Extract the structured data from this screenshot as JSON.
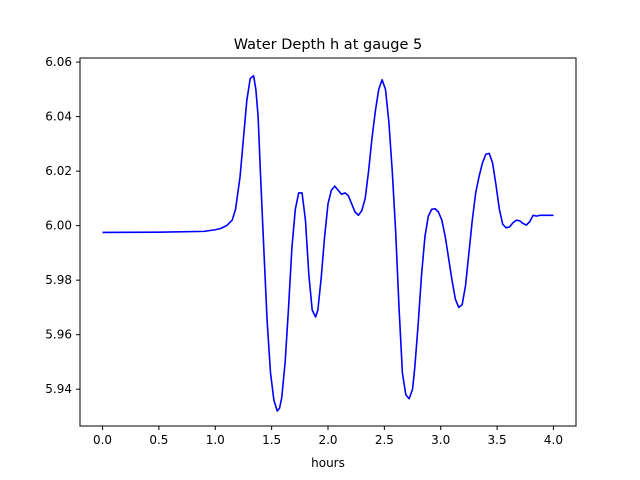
{
  "chart_data": {
    "type": "line",
    "title": "Water Depth h at gauge 5",
    "xlabel": "hours",
    "ylabel": "",
    "xlim": [
      -0.2,
      4.2
    ],
    "ylim": [
      5.9265,
      6.0615
    ],
    "xticks": [
      0.0,
      0.5,
      1.0,
      1.5,
      2.0,
      2.5,
      3.0,
      3.5,
      4.0
    ],
    "xtick_labels": [
      "0.0",
      "0.5",
      "1.0",
      "1.5",
      "2.0",
      "2.5",
      "3.0",
      "3.5",
      "4.0"
    ],
    "yticks": [
      5.94,
      5.96,
      5.98,
      6.0,
      6.02,
      6.04,
      6.06
    ],
    "ytick_labels": [
      "5.94",
      "5.96",
      "5.98",
      "6.00",
      "6.02",
      "6.04",
      "6.06"
    ],
    "grid": false,
    "legend": "none",
    "series": [
      {
        "color": "#0000ff",
        "x": [
          0.0,
          0.5,
          0.9,
          1.0,
          1.05,
          1.1,
          1.15,
          1.18,
          1.22,
          1.25,
          1.28,
          1.31,
          1.34,
          1.36,
          1.38,
          1.4,
          1.43,
          1.46,
          1.49,
          1.52,
          1.55,
          1.57,
          1.59,
          1.62,
          1.65,
          1.68,
          1.71,
          1.74,
          1.77,
          1.8,
          1.83,
          1.86,
          1.89,
          1.91,
          1.94,
          1.97,
          2.0,
          2.03,
          2.06,
          2.09,
          2.12,
          2.15,
          2.18,
          2.21,
          2.24,
          2.27,
          2.3,
          2.33,
          2.36,
          2.39,
          2.42,
          2.45,
          2.48,
          2.51,
          2.54,
          2.57,
          2.6,
          2.63,
          2.66,
          2.69,
          2.72,
          2.75,
          2.77,
          2.8,
          2.83,
          2.86,
          2.89,
          2.92,
          2.95,
          2.98,
          3.01,
          3.04,
          3.07,
          3.1,
          3.13,
          3.16,
          3.19,
          3.22,
          3.25,
          3.28,
          3.31,
          3.34,
          3.37,
          3.4,
          3.43,
          3.46,
          3.49,
          3.52,
          3.55,
          3.58,
          3.61,
          3.64,
          3.67,
          3.7,
          3.73,
          3.76,
          3.79,
          3.82,
          3.85,
          3.88,
          3.91,
          3.94,
          3.97,
          4.0
        ],
        "y": [
          5.9975,
          5.9976,
          5.9979,
          5.9985,
          5.999,
          6.0,
          6.002,
          6.006,
          6.018,
          6.032,
          6.046,
          6.054,
          6.055,
          6.05,
          6.04,
          6.02,
          5.992,
          5.965,
          5.946,
          5.936,
          5.932,
          5.933,
          5.937,
          5.95,
          5.97,
          5.992,
          6.006,
          6.012,
          6.012,
          6.002,
          5.982,
          5.969,
          5.9665,
          5.969,
          5.981,
          5.996,
          6.008,
          6.013,
          6.0145,
          6.013,
          6.0115,
          6.012,
          6.011,
          6.008,
          6.005,
          6.0038,
          6.0055,
          6.01,
          6.02,
          6.032,
          6.042,
          6.05,
          6.0535,
          6.05,
          6.038,
          6.02,
          5.998,
          5.97,
          5.946,
          5.938,
          5.9365,
          5.94,
          5.948,
          5.964,
          5.982,
          5.996,
          6.0035,
          6.006,
          6.0062,
          6.005,
          6.002,
          5.996,
          5.988,
          5.98,
          5.973,
          5.97,
          5.971,
          5.978,
          5.99,
          6.002,
          6.012,
          6.018,
          6.023,
          6.0262,
          6.0265,
          6.023,
          6.015,
          6.006,
          6.0005,
          5.9992,
          5.9995,
          6.001,
          6.002,
          6.0018,
          6.0008,
          6.0002,
          6.0015,
          6.0038,
          6.0035,
          6.0038,
          6.0038,
          6.0038,
          6.0038,
          6.0038
        ]
      }
    ]
  }
}
